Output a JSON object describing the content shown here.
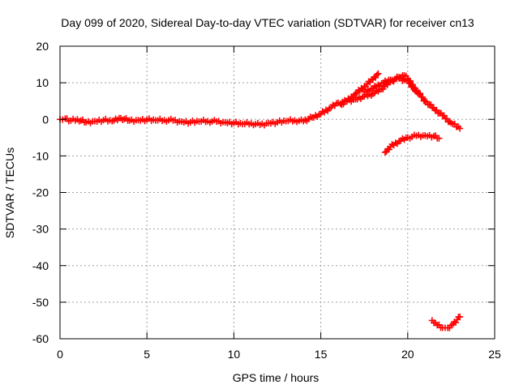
{
  "chart_data": {
    "type": "scatter",
    "title": "Day 099 of 2020, Sidereal Day-to-day VTEC variation (SDTVAR) for receiver cn13",
    "xlabel": "GPS time / hours",
    "ylabel": "SDTVAR / TECUs",
    "xlim": [
      0,
      25
    ],
    "ylim": [
      -60,
      20
    ],
    "xticks": [
      0,
      5,
      10,
      15,
      20,
      25
    ],
    "yticks": [
      -60,
      -50,
      -40,
      -30,
      -20,
      -10,
      0,
      10,
      20
    ],
    "grid": true,
    "marker": "plus",
    "colors": {
      "series": "#ff0000",
      "grid": "#a0a0a0",
      "axis": "#000000"
    },
    "series": [
      {
        "name": "main-track",
        "points": [
          [
            0,
            0
          ],
          [
            0.3,
            0.2
          ],
          [
            0.5,
            -0.5
          ],
          [
            1,
            0
          ],
          [
            1.5,
            -0.8
          ],
          [
            2,
            -0.5
          ],
          [
            2.5,
            -0.2
          ],
          [
            3,
            -0.5
          ],
          [
            3.5,
            0.3
          ],
          [
            4,
            -0.3
          ],
          [
            4.5,
            -0.2
          ],
          [
            5,
            -0.1
          ],
          [
            5.5,
            -0.3
          ],
          [
            6,
            -0.2
          ],
          [
            6.5,
            -0.3
          ],
          [
            7,
            -0.6
          ],
          [
            7.5,
            -0.8
          ],
          [
            8,
            -0.6
          ],
          [
            8.5,
            -0.5
          ],
          [
            9,
            -0.6
          ],
          [
            9.5,
            -0.8
          ],
          [
            10,
            -1
          ],
          [
            10.5,
            -1.3
          ],
          [
            11,
            -1.1
          ],
          [
            11.5,
            -1.5
          ],
          [
            12,
            -1
          ],
          [
            12.5,
            -0.8
          ],
          [
            13,
            -0.5
          ],
          [
            13.5,
            -0.3
          ],
          [
            14,
            -0.5
          ],
          [
            14.5,
            0.5
          ],
          [
            15,
            1.5
          ],
          [
            15.5,
            3
          ],
          [
            16,
            4.5
          ],
          [
            16.5,
            5
          ],
          [
            17,
            5.5
          ],
          [
            17.5,
            6.3
          ],
          [
            18,
            7
          ],
          [
            18.5,
            8.3
          ],
          [
            19,
            10.3
          ],
          [
            19.5,
            11.5
          ],
          [
            19.8,
            12
          ],
          [
            20,
            11
          ],
          [
            20.5,
            8
          ],
          [
            21,
            5
          ],
          [
            21.5,
            3
          ],
          [
            22,
            1
          ],
          [
            22.5,
            -1
          ],
          [
            23,
            -2.5
          ]
        ]
      },
      {
        "name": "upper-branch",
        "points": [
          [
            16.2,
            4
          ],
          [
            16.5,
            5
          ],
          [
            17,
            7
          ],
          [
            17.5,
            9
          ],
          [
            18,
            11
          ],
          [
            18.3,
            12.5
          ]
        ]
      },
      {
        "name": "middle-branch",
        "points": [
          [
            17.5,
            7.5
          ],
          [
            18,
            8.5
          ],
          [
            18.5,
            9.8
          ],
          [
            19,
            10.8
          ],
          [
            19.5,
            11.2
          ],
          [
            20,
            10.5
          ],
          [
            20.5,
            7.5
          ]
        ]
      },
      {
        "name": "lower-arc",
        "points": [
          [
            18.7,
            -9
          ],
          [
            19,
            -7.5
          ],
          [
            19.5,
            -6
          ],
          [
            20,
            -5
          ],
          [
            20.5,
            -4.5
          ],
          [
            21,
            -4.4
          ],
          [
            21.5,
            -4.6
          ],
          [
            21.8,
            -5.2
          ]
        ]
      },
      {
        "name": "bottom-cluster",
        "points": [
          [
            21.4,
            -55
          ],
          [
            21.7,
            -56.3
          ],
          [
            22,
            -57
          ],
          [
            22.3,
            -57
          ],
          [
            22.6,
            -56
          ],
          [
            23,
            -54
          ]
        ]
      }
    ]
  }
}
